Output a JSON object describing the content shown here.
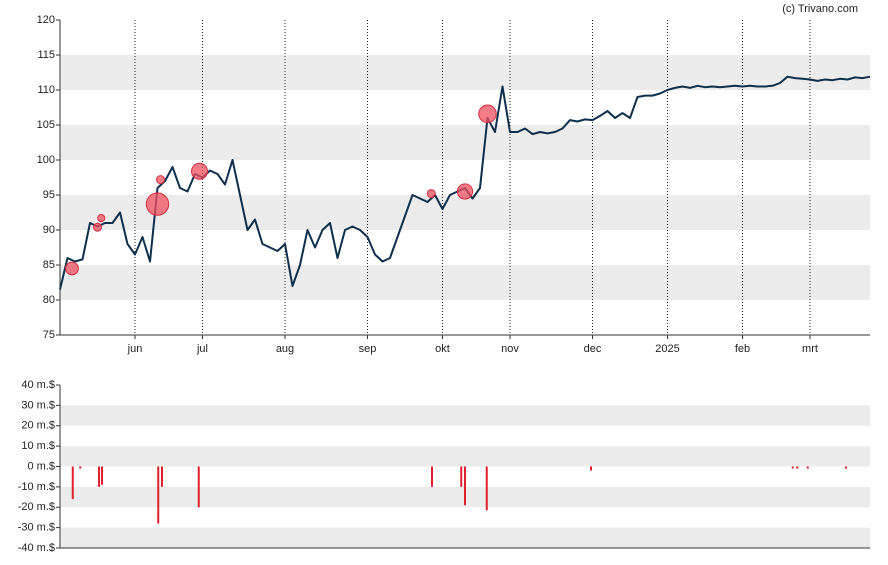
{
  "watermark": "(c) Trivano.com",
  "chart_data": [
    {
      "type": "line",
      "categories": [
        null,
        null,
        null,
        null,
        null,
        null,
        null,
        null,
        null,
        null,
        "jun",
        null,
        null,
        null,
        null,
        null,
        null,
        null,
        null,
        "jul",
        null,
        null,
        null,
        null,
        null,
        null,
        null,
        null,
        null,
        null,
        "aug",
        null,
        null,
        null,
        null,
        null,
        null,
        null,
        null,
        null,
        null,
        "sep",
        null,
        null,
        null,
        null,
        null,
        null,
        null,
        null,
        null,
        "okt",
        null,
        null,
        null,
        null,
        null,
        null,
        null,
        null,
        "nov",
        null,
        null,
        null,
        null,
        null,
        null,
        null,
        null,
        null,
        null,
        "dec",
        null,
        null,
        null,
        null,
        null,
        null,
        null,
        null,
        null,
        "2025",
        null,
        null,
        null,
        null,
        null,
        null,
        null,
        null,
        null,
        "feb",
        null,
        null,
        null,
        null,
        null,
        null,
        null,
        null,
        "mrt",
        null,
        null,
        null,
        null,
        null,
        null,
        null,
        null
      ],
      "series": [
        {
          "color": "#0e2f4d",
          "values": [
            81.5,
            86,
            85.5,
            85.8,
            91,
            90.5,
            91,
            91,
            92.5,
            88,
            86.5,
            89,
            85.5,
            96,
            97,
            99,
            96,
            95.5,
            98,
            97.5,
            98.5,
            98,
            96.5,
            100,
            95,
            90,
            91.5,
            88,
            87.5,
            87,
            88,
            82,
            85,
            90,
            87.5,
            90,
            91,
            86,
            90,
            90.5,
            90,
            89,
            86.5,
            85.5,
            86,
            89,
            92,
            95,
            94.5,
            94,
            95,
            93,
            95,
            95.5,
            96,
            94.5,
            96,
            106,
            104,
            110.5,
            104,
            104,
            104.5,
            103.7,
            104,
            103.8,
            104,
            104.5,
            105.7,
            105.5,
            105.8,
            105.7,
            106.3,
            107,
            106,
            106.7,
            106,
            109,
            109.2,
            109.2,
            109.5,
            110,
            110.3,
            110.5,
            110.3,
            110.6,
            110.4,
            110.5,
            110.4,
            110.5,
            110.6,
            110.5,
            110.6,
            110.5,
            110.5,
            110.6,
            111,
            111.9,
            111.7,
            111.6,
            111.5,
            111.3,
            111.5,
            111.4,
            111.6,
            111.5,
            111.8,
            111.7,
            111.9
          ]
        }
      ],
      "bubbles": {
        "color": "#f0505f",
        "x": [
          1.6,
          5,
          5.5,
          13,
          13.4,
          18.6,
          49.5,
          54,
          57
        ],
        "values": [
          84.5,
          90.4,
          91.7,
          93.7,
          97.2,
          98.4,
          95.2,
          95.5,
          106.6
        ],
        "sizes": [
          16,
          10,
          9,
          28,
          10,
          20,
          10,
          19,
          22
        ]
      },
      "ylim": [
        75,
        120
      ],
      "yticks": [
        75,
        80,
        85,
        90,
        95,
        100,
        105,
        110,
        115,
        120
      ],
      "grid": "bands"
    },
    {
      "type": "bar",
      "color": "#e0202e",
      "x": [
        1.7,
        2.7,
        5.2,
        5.6,
        13.1,
        13.6,
        18.5,
        49.6,
        53.5,
        54,
        56.9,
        70.8,
        97.7,
        98.3,
        99.7,
        104.8
      ],
      "values": [
        -16,
        -1,
        -10,
        -9,
        -28,
        -10,
        -20,
        -10,
        -10,
        -19,
        -21.5,
        -2,
        -1,
        -1,
        -1,
        -1
      ],
      "xlim": [
        0,
        108
      ],
      "ylim": [
        -40,
        40
      ],
      "yticks": [
        {
          "value": -40,
          "label": "-40 m.$"
        },
        {
          "value": -30,
          "label": "-30 m.$"
        },
        {
          "value": -20,
          "label": "-20 m.$"
        },
        {
          "value": -10,
          "label": "-10 m.$"
        },
        {
          "value": 0,
          "label": "0 m.$"
        },
        {
          "value": 10,
          "label": "10 m.$"
        },
        {
          "value": 20,
          "label": "20 m.$"
        },
        {
          "value": 30,
          "label": "30 m.$"
        },
        {
          "value": 40,
          "label": "40 m.$"
        }
      ],
      "grid": "bands"
    }
  ]
}
